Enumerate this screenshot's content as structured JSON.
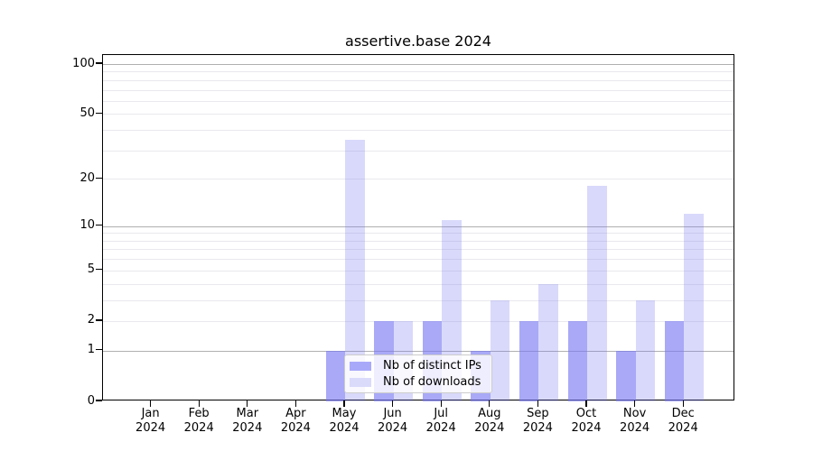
{
  "title": "assertive.base 2024",
  "y_axis": {
    "tick_labels": [
      "100",
      "50",
      "20",
      "10",
      "5",
      "2",
      "1",
      "0"
    ]
  },
  "x_axis": {
    "year": "2024",
    "months": [
      "Jan",
      "Feb",
      "Mar",
      "Apr",
      "May",
      "Jun",
      "Jul",
      "Aug",
      "Sep",
      "Oct",
      "Nov",
      "Dec"
    ]
  },
  "chart_data": {
    "type": "bar",
    "title": "assertive.base 2024",
    "categories": [
      "Jan 2024",
      "Feb 2024",
      "Mar 2024",
      "Apr 2024",
      "May 2024",
      "Jun 2024",
      "Jul 2024",
      "Aug 2024",
      "Sep 2024",
      "Oct 2024",
      "Nov 2024",
      "Dec 2024"
    ],
    "series": [
      {
        "name": "Nb of distinct IPs",
        "values": [
          0,
          0,
          0,
          0,
          1,
          2,
          2,
          1,
          2,
          2,
          1,
          2
        ],
        "fill": "rgba(120,120,242,0.64)",
        "swatch_color": "#a9a9fa"
      },
      {
        "name": "Nb of downloads",
        "values": [
          0,
          0,
          0,
          0,
          35,
          2,
          11,
          3,
          4,
          18,
          3,
          12
        ],
        "fill": "rgba(120,120,242,0.28)",
        "swatch_color": "#dadafb"
      }
    ],
    "xlabel": "",
    "ylabel": "",
    "yscale": "log1p",
    "ylim": [
      0,
      114
    ],
    "yticks": [
      100,
      50,
      20,
      10,
      5,
      2,
      1,
      0
    ],
    "major_gridlines": [
      1,
      10,
      100
    ],
    "minor_gridlines": [
      2,
      3,
      4,
      5,
      6,
      7,
      8,
      9,
      20,
      30,
      40,
      50,
      60,
      70,
      80,
      90
    ],
    "grid_colors": {
      "major": "#b0b0b0",
      "minor": "#e9e9ee"
    },
    "legend_position": "lower center",
    "grid": "on"
  }
}
